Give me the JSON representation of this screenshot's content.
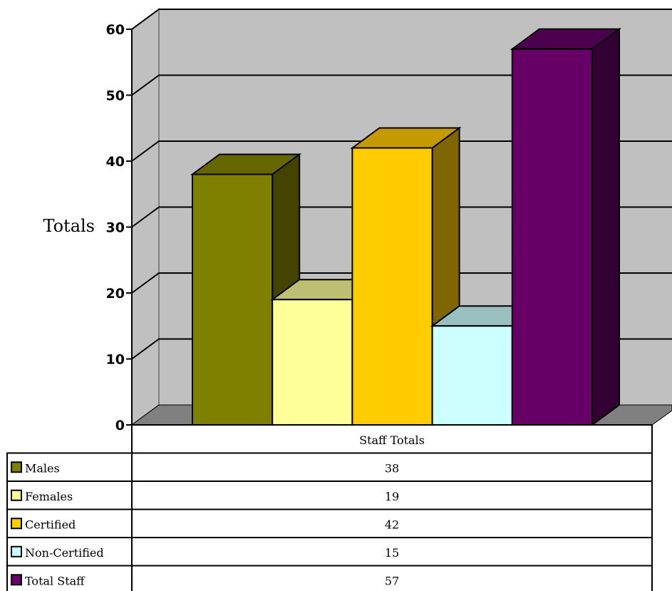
{
  "chart_data": {
    "type": "bar",
    "categories": [
      "Staff Totals"
    ],
    "series": [
      {
        "name": "Males",
        "values": [
          38
        ],
        "color": "#808000",
        "top_color": "#666600",
        "side_color": "#444400"
      },
      {
        "name": "Females",
        "values": [
          19
        ],
        "color": "#ffff99",
        "top_color": "#bfbf73",
        "side_color": "#bfbf73"
      },
      {
        "name": "Certified",
        "values": [
          42
        ],
        "color": "#ffcc00",
        "top_color": "#c49a00",
        "side_color": "#806600"
      },
      {
        "name": "Non-Certified",
        "values": [
          15
        ],
        "color": "#ccffff",
        "top_color": "#99bfbf",
        "side_color": "#99bfbf"
      },
      {
        "name": "Total Staff",
        "values": [
          57
        ],
        "color": "#660066",
        "top_color": "#4d004d",
        "side_color": "#330033"
      }
    ],
    "ylabel": "Totals",
    "ylim": [
      0,
      60
    ],
    "yticks": [
      "0",
      "10",
      "20",
      "30",
      "40",
      "50",
      "60"
    ],
    "grid": true,
    "legend": "data-table",
    "three_d": true
  }
}
